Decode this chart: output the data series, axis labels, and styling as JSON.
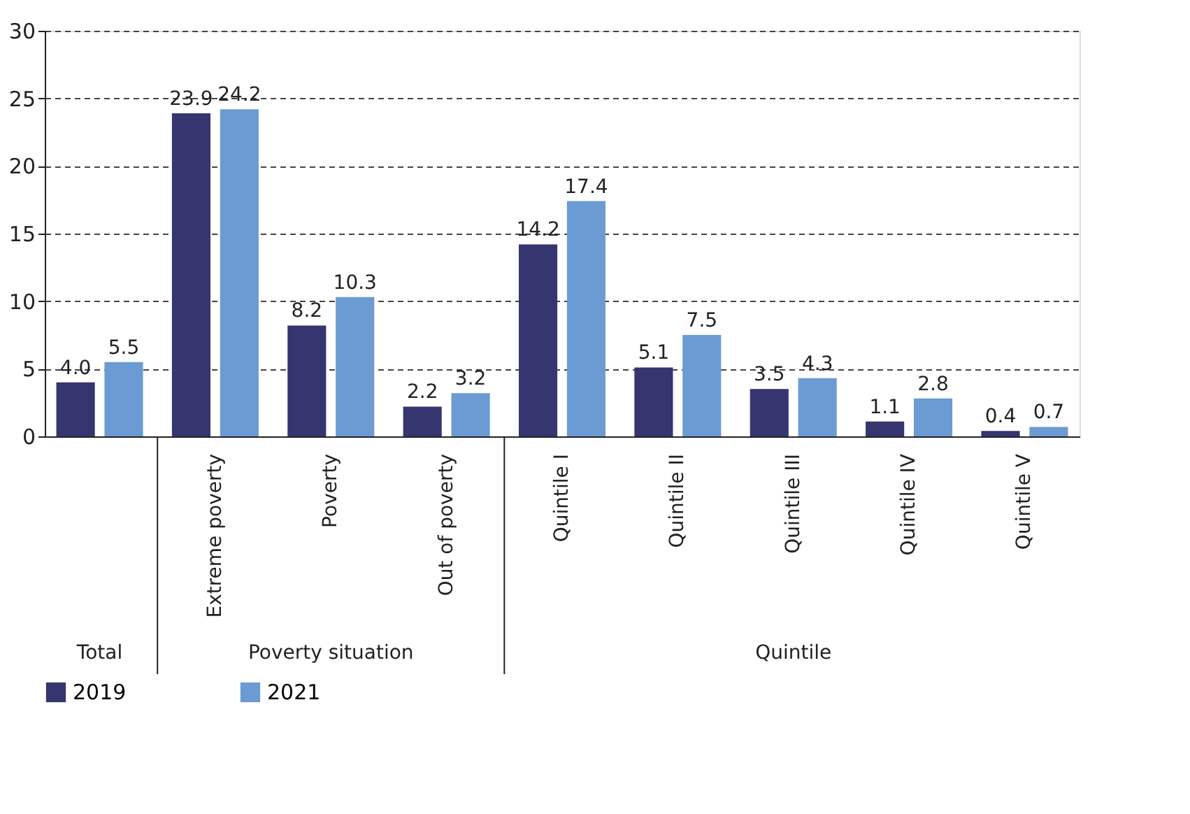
{
  "chart_data": {
    "type": "bar",
    "categories": [
      null,
      "Extreme poverty",
      "Poverty",
      "Out of poverty",
      "Quintile I",
      "Quintile II",
      "Quintile III",
      "Quintile IV",
      "Quintile V"
    ],
    "series": [
      {
        "name": "2019",
        "color": "#353570",
        "values": [
          4.0,
          23.9,
          8.2,
          2.2,
          14.2,
          5.1,
          3.5,
          1.1,
          0.4
        ],
        "value_labels": [
          "4.0",
          "23.9",
          "8.2",
          "2.2",
          "14.2",
          "5.1",
          "3.5",
          "1.1",
          "0.4"
        ]
      },
      {
        "name": "2021",
        "color": "#6b9bd2",
        "values": [
          5.5,
          24.2,
          10.3,
          3.2,
          17.4,
          7.5,
          4.3,
          2.8,
          0.7
        ],
        "value_labels": [
          "5.5",
          "24.2",
          "10.3",
          "3.2",
          "17.4",
          "7.5",
          "4.3",
          "2.8",
          "0.7"
        ]
      }
    ],
    "ylim": [
      0,
      30
    ],
    "yticks": [
      0,
      5,
      10,
      15,
      20,
      25,
      30
    ],
    "grid": "y",
    "legend": "bottom",
    "annotations": [
      "Total",
      "Poverty situation",
      "Quintile"
    ]
  }
}
